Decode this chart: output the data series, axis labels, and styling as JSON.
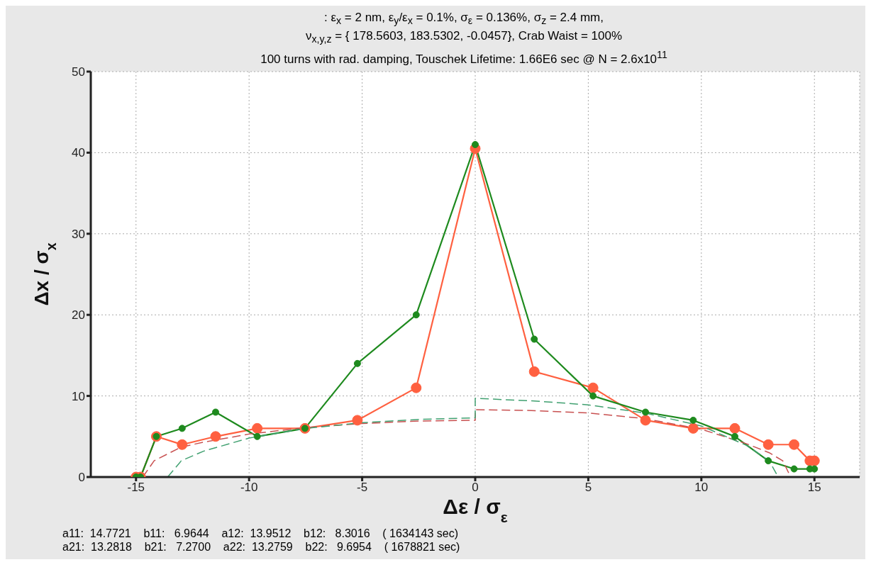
{
  "chart_data": {
    "type": "line",
    "title": ": ε$_{x}$ = 2 nm, ε$_{y}$/ε$_{x}$ = 0.1%, σ$_{ε}$ = 0.136%, σ$_{z}$ = 2.4 mm,\nν$_{x,y,z}$ = { 178.5603, 183.5302,  -0.0457}, Crab Waist = 100%\n100 turns with rad. damping, Touschek Lifetime: 1.66E6 sec @ N = 2.6x10$^{11}$",
    "xlabel": "Δε / σ$_{ε}$",
    "ylabel": "Δx / σ$_{x}$",
    "xlim": [
      -17,
      17
    ],
    "xticks": [
      -15,
      -10,
      -5,
      0,
      5,
      10,
      15
    ],
    "ylim": [
      0,
      50
    ],
    "yticks": [
      0,
      10,
      20,
      30,
      40,
      50
    ],
    "grid": true,
    "marker": "circle",
    "line_style": "solid",
    "series": [
      {
        "color": "#ff6040",
        "x": [
          -15,
          -14.8,
          -14.1,
          -12.96,
          -11.48,
          -9.64,
          -7.53,
          -5.21,
          -2.61,
          0,
          2.61,
          5.21,
          7.53,
          9.64,
          11.48,
          12.96,
          14.1,
          14.8,
          15
        ],
        "values": [
          0,
          0,
          5,
          4,
          5,
          6,
          6,
          7,
          11,
          40.5,
          13,
          11,
          7,
          6,
          6,
          4,
          4,
          2,
          2
        ]
      },
      {
        "color": "#1e8a1e",
        "x": [
          -15,
          -14.8,
          -14.1,
          -12.96,
          -11.48,
          -9.64,
          -7.53,
          -5.21,
          -2.61,
          0,
          2.61,
          5.21,
          7.53,
          9.64,
          11.48,
          12.96,
          14.1,
          14.8,
          15
        ],
        "values": [
          0,
          0,
          5,
          6,
          8,
          5,
          6,
          14,
          20,
          41,
          17,
          10,
          8,
          7,
          5,
          2,
          1,
          1,
          1
        ]
      },
      {
        "color": "#c85050",
        "marker": "none",
        "line_style": "dashed",
        "x": [
          -14.7,
          -14.2,
          -13,
          -12,
          -10,
          -7.5,
          -5,
          -2.5,
          0,
          0,
          2.5,
          5,
          7.5,
          10,
          12,
          13,
          13.6,
          13.95
        ],
        "values": [
          0,
          2,
          3.7,
          4.3,
          5.3,
          6.1,
          6.6,
          6.9,
          7,
          8.3,
          8.2,
          7.9,
          7.2,
          5.9,
          4.1,
          3,
          2,
          0
        ]
      },
      {
        "color": "#40a070",
        "marker": "none",
        "line_style": "dashed",
        "x": [
          -13.6,
          -13,
          -12,
          -10,
          -7.5,
          -5,
          -2.5,
          0,
          0,
          2.5,
          5,
          7.5,
          10,
          12,
          13,
          13.4
        ],
        "values": [
          0,
          2,
          3.2,
          4.8,
          6,
          6.7,
          7.1,
          7.3,
          9.7,
          9.4,
          8.9,
          7.9,
          6.3,
          3.9,
          2,
          0
        ]
      }
    ],
    "annotations": [
      "a11:  14.7721    b11:   6.9644    a12:  13.9512    b12:   8.3016    ( 1634143 sec)",
      "a21:  13.2818    b21:   7.2700    a22:  13.2759    b22:   9.6954    ( 1678821 sec)"
    ]
  }
}
